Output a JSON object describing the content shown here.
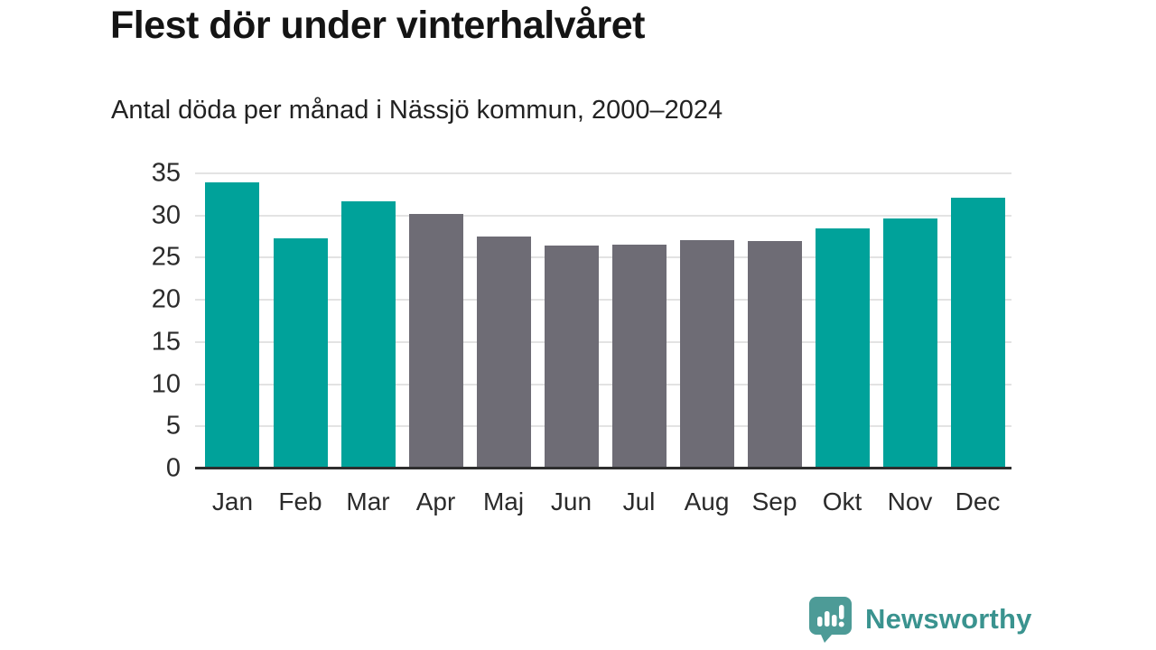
{
  "header": {
    "title": "Flest dör under vinterhalvåret",
    "subtitle": "Antal döda per månad i Nässjö kommun, 2000–2024"
  },
  "chart_data": {
    "type": "bar",
    "title": "Flest dör under vinterhalvåret",
    "subtitle": "Antal döda per månad i Nässjö kommun, 2000–2024",
    "categories": [
      "Jan",
      "Feb",
      "Mar",
      "Apr",
      "Maj",
      "Jun",
      "Jul",
      "Aug",
      "Sep",
      "Okt",
      "Nov",
      "Dec"
    ],
    "values": [
      33.9,
      27.3,
      31.7,
      30.2,
      27.5,
      26.4,
      26.5,
      27.1,
      27.0,
      28.5,
      29.6,
      32.1
    ],
    "color_keys": [
      "winter",
      "winter",
      "winter",
      "summer",
      "summer",
      "summer",
      "summer",
      "summer",
      "summer",
      "winter",
      "winter",
      "winter"
    ],
    "bar_palette": {
      "winter": "#00a29a",
      "summer": "#6e6c75"
    },
    "xlabel": "",
    "ylabel": "",
    "ylim": [
      0,
      35
    ],
    "yticks": [
      0,
      5,
      10,
      15,
      20,
      25,
      30,
      35
    ],
    "grid": "horizontal",
    "legend_position": "none",
    "gridline_color": "#e3e3e3",
    "axis_line_color": "#2e2e2e",
    "tick_label_color": "#2b2b2b"
  },
  "footer": {
    "brand": "Newsworthy",
    "brand_color": "#3a938f",
    "logo_bubble_color": "#4d9b97",
    "logo_icon": "newsworthy-speech-bubble-bar-chart-icon"
  }
}
